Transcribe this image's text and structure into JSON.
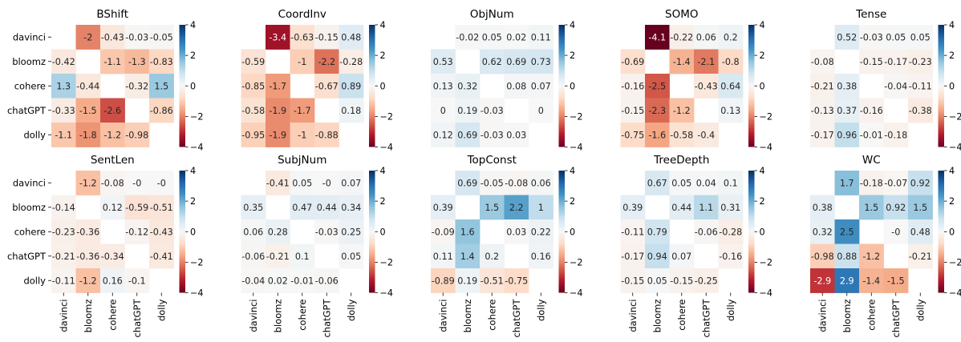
{
  "chart_data": {
    "type": "heatmap",
    "models": [
      "davinci",
      "bloomz",
      "cohere",
      "chatGPT",
      "dolly"
    ],
    "colorbar": {
      "range": [
        -4,
        4
      ],
      "ticks": [
        "4",
        "2",
        "0",
        "−2",
        "−4"
      ]
    },
    "panels": [
      {
        "title": "BShift",
        "values": [
          [
            null,
            -2,
            -0.43,
            -0.03,
            -0.05
          ],
          [
            -0.42,
            null,
            -1.1,
            -1.3,
            -0.83
          ],
          [
            1.3,
            -0.44,
            null,
            -0.32,
            1.5
          ],
          [
            -0.33,
            -1.5,
            -2.6,
            null,
            -0.86
          ],
          [
            -1.1,
            -1.8,
            -1.2,
            -0.98,
            null
          ]
        ],
        "labels": [
          [
            "",
            "-2",
            "-0.43",
            "-0.03",
            "-0.05"
          ],
          [
            "-0.42",
            "",
            "-1.1",
            "-1.3",
            "-0.83"
          ],
          [
            "1.3",
            "-0.44",
            "",
            "-0.32",
            "1.5"
          ],
          [
            "-0.33",
            "-1.5",
            "-2.6",
            "",
            "-0.86"
          ],
          [
            "-1.1",
            "-1.8",
            "-1.2",
            "-0.98",
            ""
          ]
        ]
      },
      {
        "title": "CoordInv",
        "values": [
          [
            null,
            -3.4,
            -0.63,
            -0.15,
            0.48
          ],
          [
            -0.59,
            null,
            -1,
            -2.2,
            -0.28
          ],
          [
            -0.85,
            -1.7,
            null,
            -0.67,
            0.89
          ],
          [
            -0.58,
            -1.9,
            -1.7,
            null,
            0.18
          ],
          [
            -0.95,
            -1.9,
            -1,
            -0.88,
            null
          ]
        ],
        "labels": [
          [
            "",
            "-3.4",
            "-0.63",
            "-0.15",
            "0.48"
          ],
          [
            "-0.59",
            "",
            "-1",
            "-2.2",
            "-0.28"
          ],
          [
            "-0.85",
            "-1.7",
            "",
            "-0.67",
            "0.89"
          ],
          [
            "-0.58",
            "-1.9",
            "-1.7",
            "",
            "0.18"
          ],
          [
            "-0.95",
            "-1.9",
            "-1",
            "-0.88",
            ""
          ]
        ]
      },
      {
        "title": "ObjNum",
        "values": [
          [
            null,
            -0.02,
            0.05,
            0.02,
            0.11
          ],
          [
            0.53,
            null,
            0.62,
            0.69,
            0.73
          ],
          [
            0.13,
            0.32,
            null,
            0.08,
            0.07
          ],
          [
            0,
            0.19,
            -0.03,
            null,
            0
          ],
          [
            0.12,
            0.69,
            -0.03,
            0.03,
            null
          ]
        ],
        "labels": [
          [
            "",
            "-0.02",
            "0.05",
            "0.02",
            "0.11"
          ],
          [
            "0.53",
            "",
            "0.62",
            "0.69",
            "0.73"
          ],
          [
            "0.13",
            "0.32",
            "",
            "0.08",
            "0.07"
          ],
          [
            "0",
            "0.19",
            "-0.03",
            "",
            "0"
          ],
          [
            "0.12",
            "0.69",
            "-0.03",
            "0.03",
            ""
          ]
        ]
      },
      {
        "title": "SOMO",
        "values": [
          [
            null,
            -4.1,
            -0.22,
            0.06,
            0.2
          ],
          [
            -0.69,
            null,
            -1.4,
            -2.1,
            -0.8
          ],
          [
            -0.16,
            -2.5,
            null,
            -0.43,
            0.64
          ],
          [
            -0.15,
            -2.3,
            -1.2,
            null,
            0.13
          ],
          [
            -0.75,
            -1.6,
            -0.58,
            -0.4,
            null
          ]
        ],
        "labels": [
          [
            "",
            "-4.1",
            "-0.22",
            "0.06",
            "0.2"
          ],
          [
            "-0.69",
            "",
            "-1.4",
            "-2.1",
            "-0.8"
          ],
          [
            "-0.16",
            "-2.5",
            "",
            "-0.43",
            "0.64"
          ],
          [
            "-0.15",
            "-2.3",
            "-1.2",
            "",
            "0.13"
          ],
          [
            "-0.75",
            "-1.6",
            "-0.58",
            "-0.4",
            ""
          ]
        ]
      },
      {
        "title": "Tense",
        "values": [
          [
            null,
            0.52,
            -0.03,
            0.05,
            0.05
          ],
          [
            -0.08,
            null,
            -0.15,
            -0.17,
            -0.23
          ],
          [
            -0.21,
            0.38,
            null,
            -0.04,
            -0.11
          ],
          [
            -0.13,
            0.37,
            -0.16,
            null,
            -0.38
          ],
          [
            -0.17,
            0.96,
            -0.01,
            -0.18,
            null
          ]
        ],
        "labels": [
          [
            "",
            "0.52",
            "-0.03",
            "0.05",
            "0.05"
          ],
          [
            "-0.08",
            "",
            "-0.15",
            "-0.17",
            "-0.23"
          ],
          [
            "-0.21",
            "0.38",
            "",
            "-0.04",
            "-0.11"
          ],
          [
            "-0.13",
            "0.37",
            "-0.16",
            "",
            "-0.38"
          ],
          [
            "-0.17",
            "0.96",
            "-0.01",
            "-0.18",
            ""
          ]
        ]
      },
      {
        "title": "SentLen",
        "values": [
          [
            null,
            -1.2,
            -0.08,
            0,
            0
          ],
          [
            -0.14,
            null,
            0.12,
            -0.59,
            -0.51
          ],
          [
            -0.23,
            -0.36,
            null,
            -0.12,
            -0.43
          ],
          [
            -0.21,
            -0.36,
            -0.34,
            null,
            -0.41
          ],
          [
            -0.11,
            -1.2,
            0.16,
            -0.1,
            null
          ]
        ],
        "labels": [
          [
            "",
            "-1.2",
            "-0.08",
            "-0",
            "-0"
          ],
          [
            "-0.14",
            "",
            "0.12",
            "-0.59",
            "-0.51"
          ],
          [
            "-0.23",
            "-0.36",
            "",
            "-0.12",
            "-0.43"
          ],
          [
            "-0.21",
            "-0.36",
            "-0.34",
            "",
            "-0.41"
          ],
          [
            "-0.11",
            "-1.2",
            "0.16",
            "-0.1",
            ""
          ]
        ]
      },
      {
        "title": "SubjNum",
        "values": [
          [
            null,
            -0.41,
            0.05,
            0,
            0.07
          ],
          [
            0.35,
            null,
            0.47,
            0.44,
            0.34
          ],
          [
            0.06,
            0.28,
            null,
            -0.03,
            0.25
          ],
          [
            -0.06,
            -0.21,
            0.1,
            null,
            0.05
          ],
          [
            -0.04,
            0.02,
            -0.01,
            -0.06,
            null
          ]
        ],
        "labels": [
          [
            "",
            "-0.41",
            "0.05",
            "-0",
            "0.07"
          ],
          [
            "0.35",
            "",
            "0.47",
            "0.44",
            "0.34"
          ],
          [
            "0.06",
            "0.28",
            "",
            "-0.03",
            "0.25"
          ],
          [
            "-0.06",
            "-0.21",
            "0.1",
            "",
            "0.05"
          ],
          [
            "-0.04",
            "0.02",
            "-0.01",
            "-0.06",
            ""
          ]
        ]
      },
      {
        "title": "TopConst",
        "values": [
          [
            null,
            0.69,
            -0.05,
            -0.08,
            0.06
          ],
          [
            0.39,
            null,
            1.5,
            2.2,
            1
          ],
          [
            -0.09,
            1.6,
            null,
            0.03,
            0.22
          ],
          [
            0.11,
            1.4,
            0.2,
            null,
            0.16
          ],
          [
            -0.89,
            0.19,
            -0.51,
            -0.75,
            null
          ]
        ],
        "labels": [
          [
            "",
            "0.69",
            "-0.05",
            "-0.08",
            "0.06"
          ],
          [
            "0.39",
            "",
            "1.5",
            "2.2",
            "1"
          ],
          [
            "-0.09",
            "1.6",
            "",
            "0.03",
            "0.22"
          ],
          [
            "0.11",
            "1.4",
            "0.2",
            "",
            "0.16"
          ],
          [
            "-0.89",
            "0.19",
            "-0.51",
            "-0.75",
            ""
          ]
        ]
      },
      {
        "title": "TreeDepth",
        "values": [
          [
            null,
            0.67,
            0.05,
            0.04,
            0.1
          ],
          [
            0.39,
            null,
            0.44,
            1.1,
            0.31
          ],
          [
            -0.11,
            0.79,
            null,
            -0.06,
            -0.28
          ],
          [
            -0.17,
            0.94,
            0.07,
            null,
            -0.16
          ],
          [
            -0.15,
            0.05,
            -0.15,
            -0.25,
            null
          ]
        ],
        "labels": [
          [
            "",
            "0.67",
            "0.05",
            "0.04",
            "0.1"
          ],
          [
            "0.39",
            "",
            "0.44",
            "1.1",
            "0.31"
          ],
          [
            "-0.11",
            "0.79",
            "",
            "-0.06",
            "-0.28"
          ],
          [
            "-0.17",
            "0.94",
            "0.07",
            "",
            "-0.16"
          ],
          [
            "-0.15",
            "0.05",
            "-0.15",
            "-0.25",
            ""
          ]
        ]
      },
      {
        "title": "WC",
        "values": [
          [
            null,
            1.7,
            -0.18,
            -0.07,
            0.92
          ],
          [
            0.38,
            null,
            1.5,
            0.92,
            1.5
          ],
          [
            0.32,
            2.5,
            null,
            0,
            0.48
          ],
          [
            -0.98,
            0.88,
            -1.2,
            null,
            -0.21
          ],
          [
            -2.9,
            2.9,
            -1.4,
            -1.5,
            null
          ]
        ],
        "labels": [
          [
            "",
            "1.7",
            "-0.18",
            "-0.07",
            "0.92"
          ],
          [
            "0.38",
            "",
            "1.5",
            "0.92",
            "1.5"
          ],
          [
            "0.32",
            "2.5",
            "",
            "-0",
            "0.48"
          ],
          [
            "-0.98",
            "0.88",
            "-1.2",
            "",
            "-0.21"
          ],
          [
            "-2.9",
            "2.9",
            "-1.4",
            "-1.5",
            ""
          ]
        ]
      }
    ]
  }
}
